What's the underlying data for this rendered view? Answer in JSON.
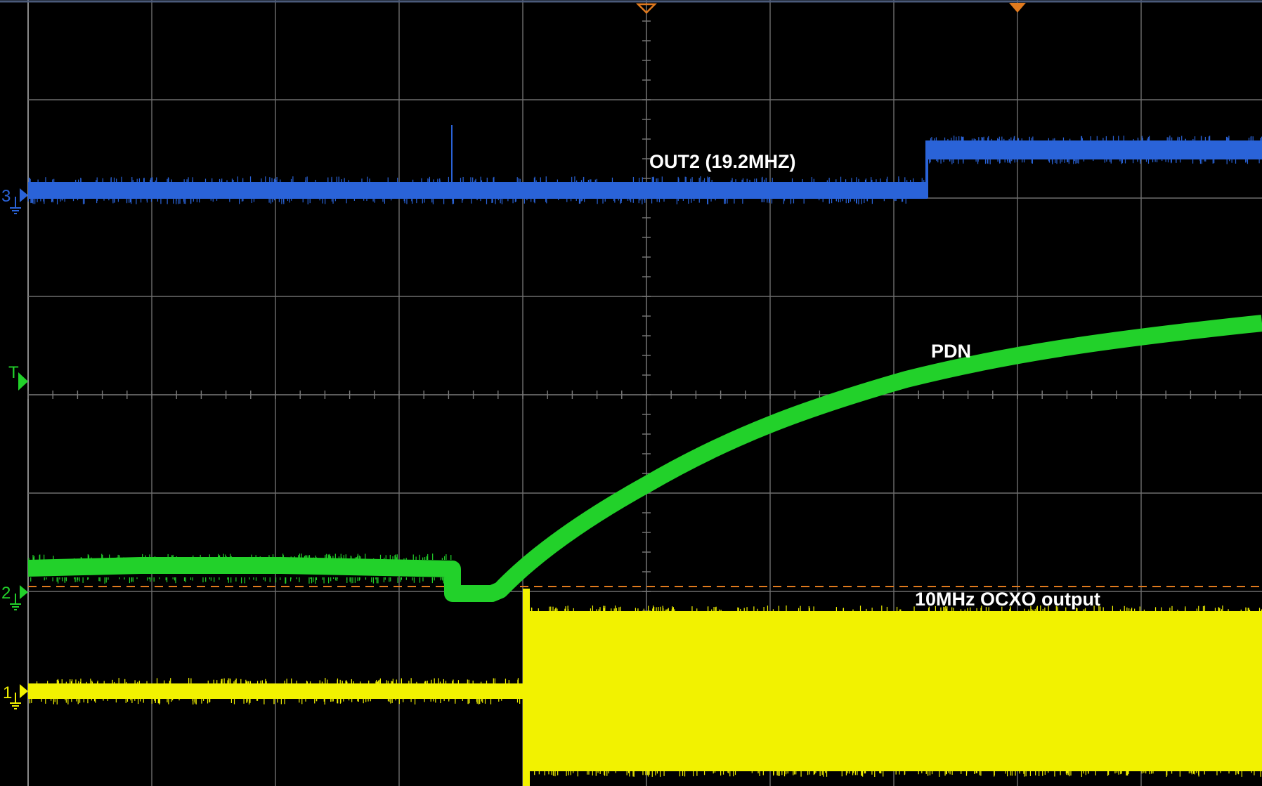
{
  "screen": {
    "background": "#000000",
    "grid_color": "#6e6e6e",
    "divisions_x": 10,
    "divisions_y": 8
  },
  "channels": [
    {
      "id": "3",
      "marker_label": "3",
      "color": "#2a63d8",
      "trace_label": "OUT2 (19.2MHZ)"
    },
    {
      "id": "T",
      "marker_label": "T",
      "color": "#22d12a",
      "trace_label": ""
    },
    {
      "id": "2",
      "marker_label": "2",
      "color": "#22d12a",
      "trace_label": "PDN"
    },
    {
      "id": "1",
      "marker_label": "1",
      "color": "#f2f200",
      "trace_label": "10MHz OCXO output"
    }
  ],
  "trigger": {
    "level_line_color": "#e07a1e",
    "top_markers": [
      "hollow",
      "filled"
    ]
  }
}
